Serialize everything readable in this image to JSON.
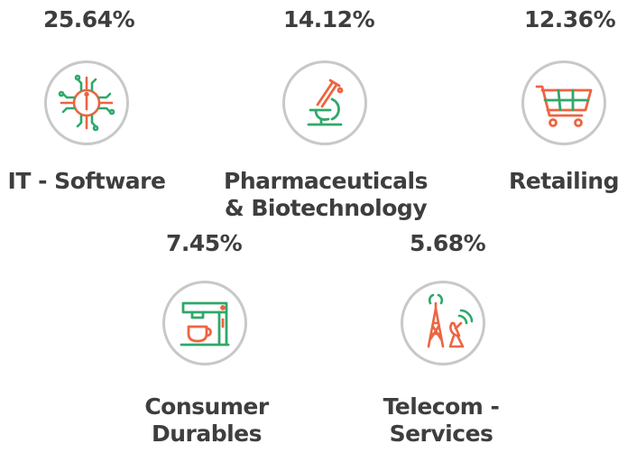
{
  "chart_data": {
    "type": "table",
    "categories": [
      "IT - Software",
      "Pharmaceuticals & Biotechnology",
      "Retailing",
      "Consumer Durables",
      "Telecom - Services"
    ],
    "items": [
      {
        "value": "25.64%",
        "label_lines": [
          "IT - Software"
        ],
        "icon": "circuit-chip-icon"
      },
      {
        "value": "14.12%",
        "label_lines": [
          "Pharmaceuticals",
          "& Biotechnology"
        ],
        "icon": "microscope-icon"
      },
      {
        "value": "12.36%",
        "label_lines": [
          "Retailing"
        ],
        "icon": "shopping-cart-icon"
      },
      {
        "value": "7.45%",
        "label_lines": [
          "Consumer",
          "Durables"
        ],
        "icon": "coffee-machine-icon"
      },
      {
        "value": "5.68%",
        "label_lines": [
          "Telecom -",
          "Services"
        ],
        "icon": "telecom-tower-icon"
      }
    ],
    "colors": {
      "accent_orange": "#ee6440",
      "accent_green": "#2fa86a",
      "text": "#3e3e3e",
      "circle_border": "#c8c8c8"
    }
  }
}
